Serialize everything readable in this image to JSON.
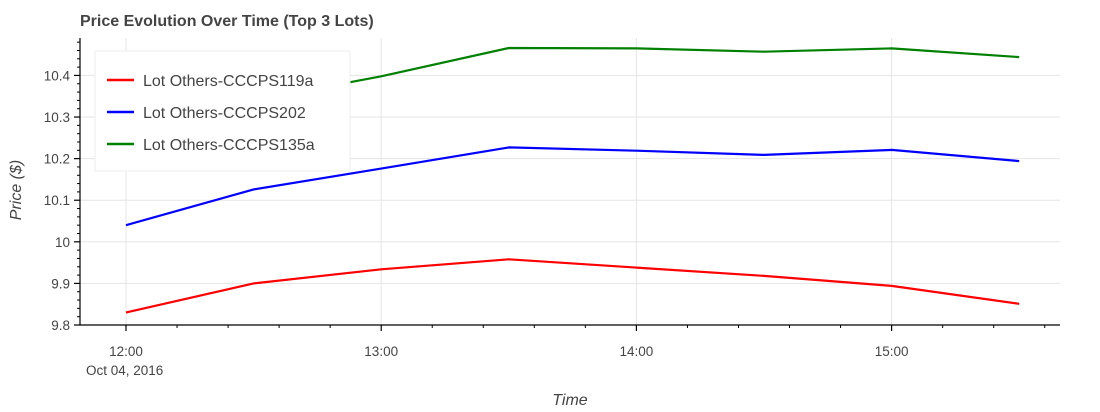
{
  "chart_data": {
    "type": "line",
    "title": "Price Evolution Over Time (Top 3 Lots)",
    "xlabel": "Time",
    "ylabel": "Price ($)",
    "x": [
      "12:00",
      "12:30",
      "13:00",
      "13:30",
      "14:00",
      "14:30",
      "15:00",
      "15:30"
    ],
    "x_tick_labels": [
      "12:00",
      "13:00",
      "14:00",
      "15:00"
    ],
    "x_date_label": "Oct 04, 2016",
    "y_tick_labels": [
      "9.8",
      "9.9",
      "10",
      "10.1",
      "10.2",
      "10.3",
      "10.4"
    ],
    "ylim": [
      9.8,
      10.49
    ],
    "grid": true,
    "legend_position": "top-left",
    "series": [
      {
        "name": "Lot Others-CCCPS119a",
        "color": "#ff0000",
        "values": [
          9.83,
          9.9,
          9.934,
          9.958,
          9.938,
          9.918,
          9.894,
          9.851
        ]
      },
      {
        "name": "Lot Others-CCCPS202",
        "color": "#0000ff",
        "values": [
          10.04,
          10.126,
          10.176,
          10.227,
          10.219,
          10.209,
          10.221,
          10.194
        ]
      },
      {
        "name": "Lot Others-CCCPS135a",
        "color": "#008000",
        "values": [
          10.23,
          10.34,
          10.398,
          10.466,
          10.465,
          10.457,
          10.465,
          10.444
        ]
      }
    ]
  }
}
